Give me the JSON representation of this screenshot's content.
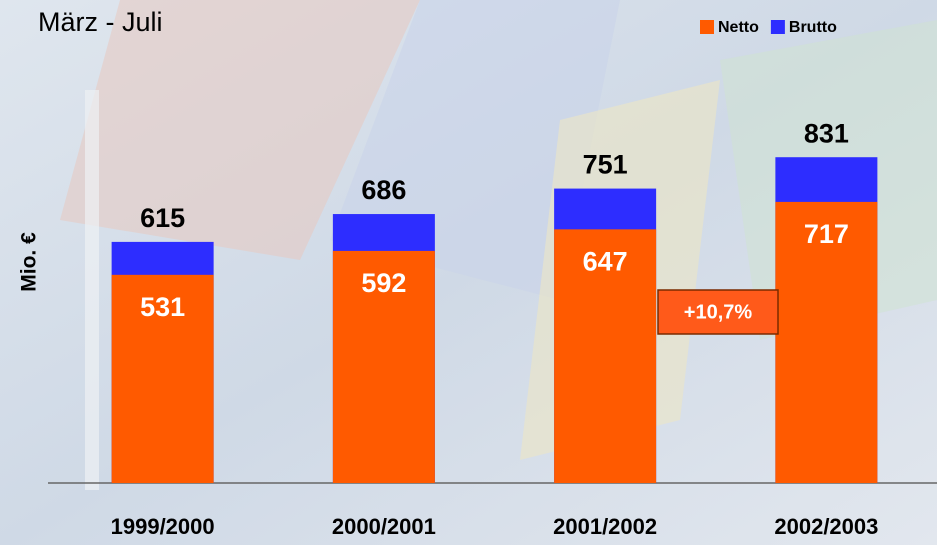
{
  "chart_data": {
    "type": "bar",
    "title": "März - Juli",
    "y_label": "Mio. €",
    "categories": [
      "1999/2000",
      "2000/2001",
      "2001/2002",
      "2002/2003"
    ],
    "series": [
      {
        "name": "Netto",
        "color": "#ff5a00",
        "values": [
          531,
          592,
          647,
          717
        ]
      },
      {
        "name": "Brutto",
        "color": "#2d2dff",
        "values": [
          615,
          686,
          751,
          831
        ]
      }
    ],
    "overlap": true,
    "ylim": [
      0,
      1232
    ],
    "legend": "top-right",
    "annotation": "+10,7%"
  }
}
